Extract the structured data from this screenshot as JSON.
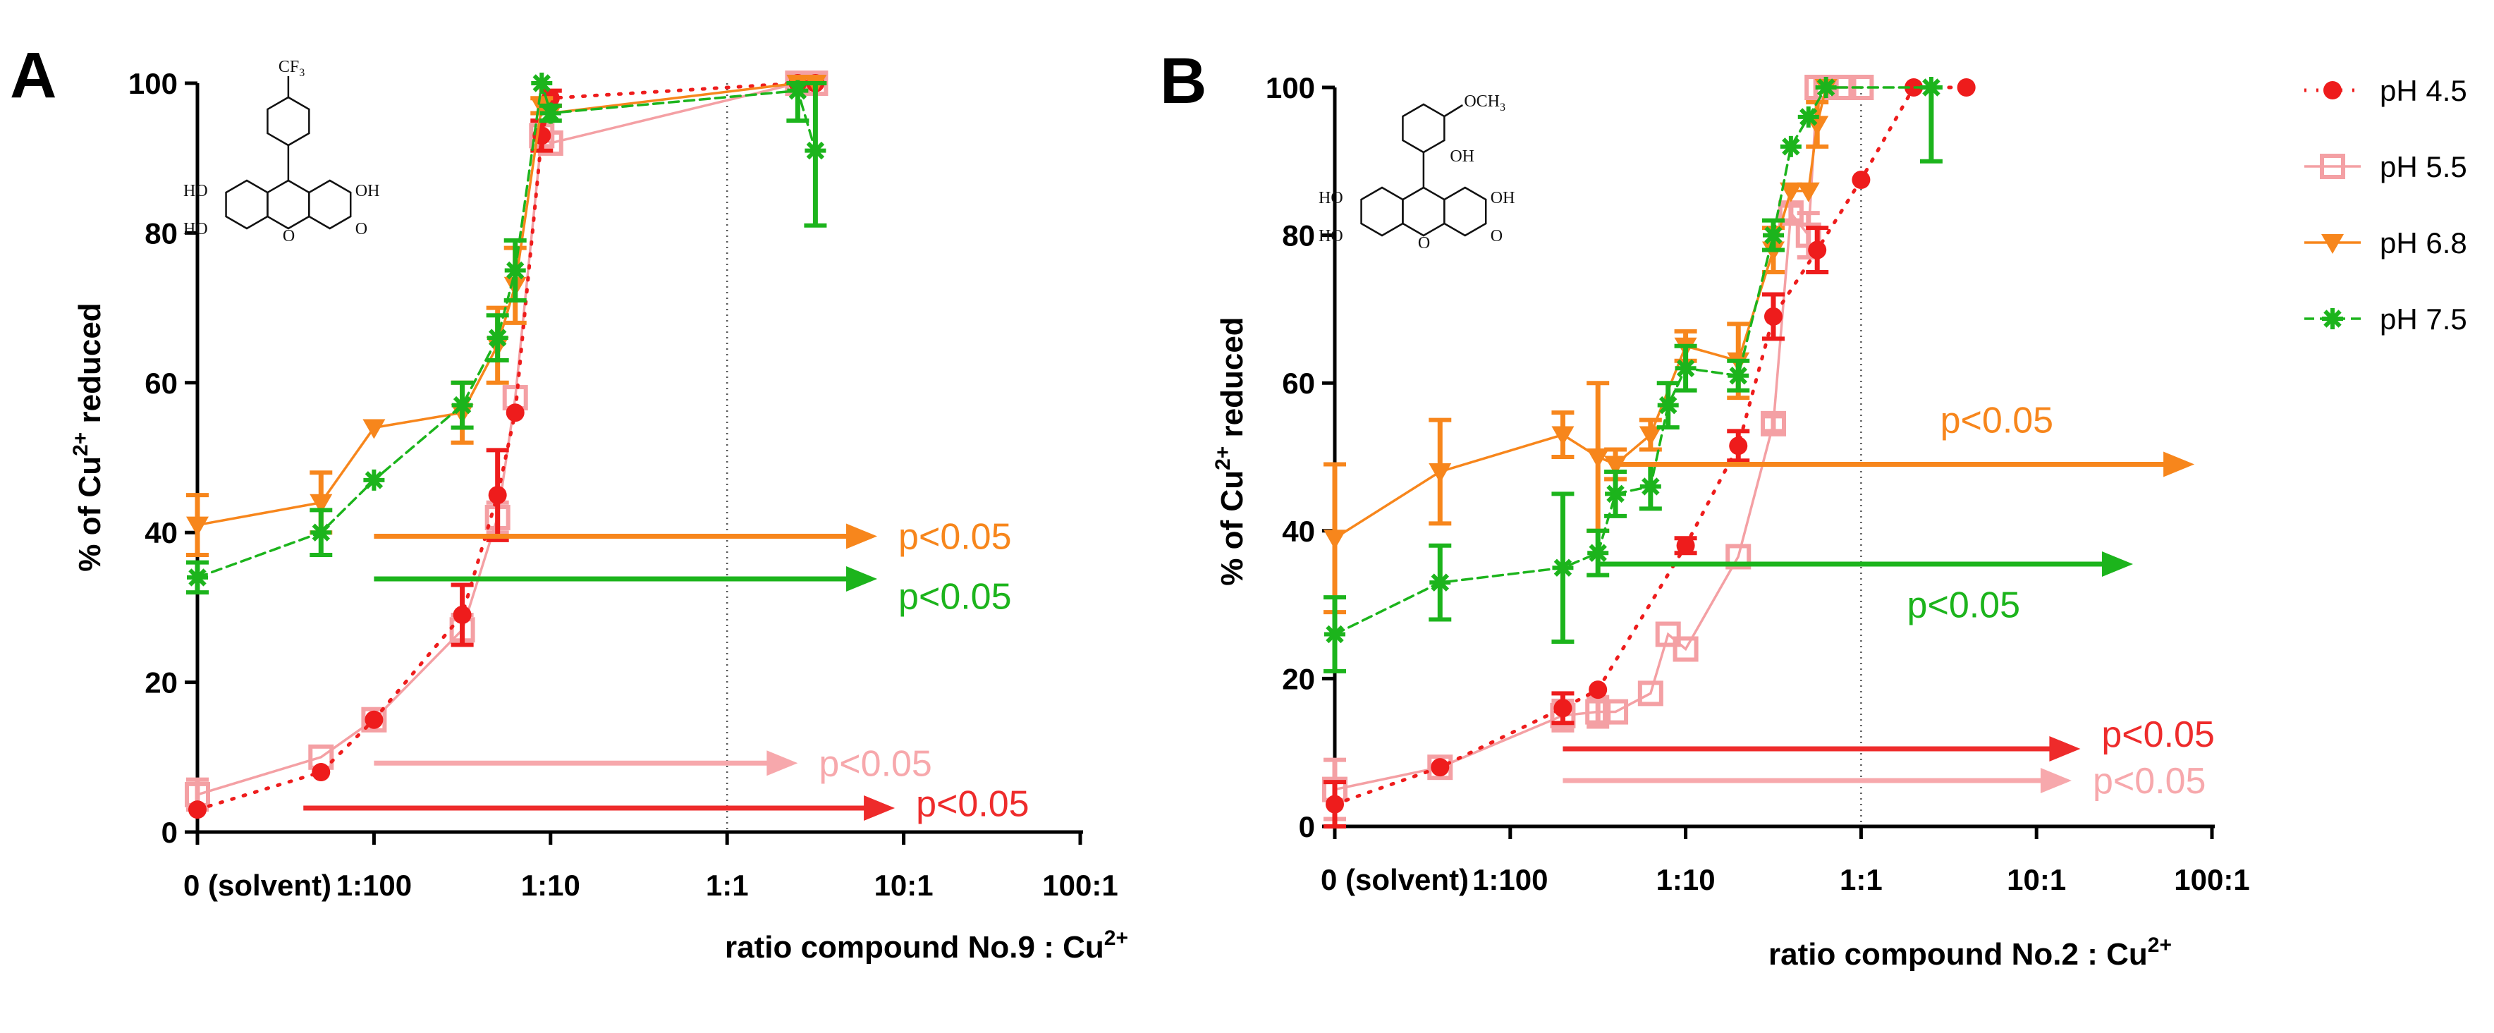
{
  "colors": {
    "ph45": "#ee1c1c",
    "ph55": "#f4a0a4",
    "ph68": "#f7861c",
    "ph75": "#1cb41c",
    "arrow_red": "#ee2b2b",
    "arrow_pink": "#f7a8ac"
  },
  "legend": [
    {
      "key": "ph45",
      "label": "pH 4.5",
      "marker": "circle",
      "dash": "dotted"
    },
    {
      "key": "ph55",
      "label": "pH 5.5",
      "marker": "square",
      "dash": "solid"
    },
    {
      "key": "ph68",
      "label": "pH 6.8",
      "marker": "triangle-down",
      "dash": "solid"
    },
    {
      "key": "ph75",
      "label": "pH 7.5",
      "marker": "asterisk",
      "dash": "dashed"
    }
  ],
  "chart_data": [
    {
      "type": "line",
      "panel_label": "A",
      "ylabel_pre": "% of Cu",
      "ylabel_sup": "2+",
      "ylabel_post": " reduced",
      "xlabel_pre": "ratio compound No.9 : Cu",
      "xlabel_sup": "2+",
      "x_scale": "log-ratio (decades from 1:1000), 0 = solvent",
      "xlim": [
        -3,
        2
      ],
      "ylim": [
        0,
        100
      ],
      "yticks": [
        0,
        20,
        40,
        60,
        80,
        100
      ],
      "ytick_labels": [
        "0",
        "20",
        "40",
        "60",
        "80",
        "100"
      ],
      "xticks": [
        -3,
        -2,
        -1,
        0,
        1,
        2
      ],
      "xtick_labels": [
        "0 (solvent)",
        "1:100",
        "1:10",
        "1:1",
        "10:1",
        "100:1"
      ],
      "reference_line_x": 0,
      "structure": {
        "top_label": "CF",
        "top_sub": "3",
        "left_labels": [
          "HO",
          "HO"
        ],
        "right_labels": [
          "OH",
          "O"
        ],
        "ring_o": "O"
      },
      "series": [
        {
          "key": "ph45",
          "name": "pH 4.5",
          "x": [
            -3,
            -2.3,
            -2,
            -1.5,
            -1.3,
            -1.2,
            -1.05,
            -1,
            0.4,
            0.5
          ],
          "y": [
            3,
            8,
            15,
            29,
            45,
            56,
            93,
            98,
            100,
            100
          ],
          "err": [
            0,
            0,
            0,
            4,
            6,
            0,
            2,
            1,
            0,
            0
          ]
        },
        {
          "key": "ph55",
          "name": "pH 5.5",
          "x": [
            -3,
            -2.3,
            -2,
            -1.5,
            -1.3,
            -1.2,
            -1.05,
            -1,
            0.4,
            0.5
          ],
          "y": [
            5,
            10,
            15,
            27,
            42,
            58,
            93,
            92,
            100,
            100
          ],
          "err": [
            2,
            0,
            0,
            2,
            2,
            0,
            0,
            0,
            0,
            0
          ]
        },
        {
          "key": "ph68",
          "name": "pH 6.8",
          "x": [
            -3,
            -2.3,
            -2,
            -1.5,
            -1.3,
            -1.2,
            -1.05,
            -1,
            0.4,
            0.5
          ],
          "y": [
            41,
            44,
            54,
            56,
            65,
            73,
            97,
            96,
            100,
            100
          ],
          "err": [
            4,
            4,
            0,
            4,
            5,
            5,
            1,
            0,
            0,
            0
          ]
        },
        {
          "key": "ph75",
          "name": "pH 7.5",
          "x": [
            -3,
            -2.3,
            -2,
            -1.5,
            -1.3,
            -1.2,
            -1.05,
            -1,
            0.4,
            0.5
          ],
          "y": [
            34,
            40,
            47,
            57,
            66,
            75,
            100,
            96,
            99,
            91
          ],
          "err": [
            2,
            3,
            0,
            3,
            3,
            4,
            0,
            1,
            4,
            10
          ]
        }
      ],
      "significance_arrows": [
        {
          "key": "ph68",
          "label": "p<0.05",
          "x_start": -2,
          "x_end": 0.85,
          "y": 39.5,
          "label_side": "right",
          "label_y": 39.5
        },
        {
          "key": "ph75",
          "label": "p<0.05",
          "x_start": -2,
          "x_end": 0.85,
          "y": 33.8,
          "label_side": "right",
          "label_y": 31.5
        },
        {
          "key": "ph55",
          "label": "p<0.05",
          "x_start": -2,
          "x_end": 0.4,
          "y": 9.2,
          "label_side": "right",
          "label_y": 9.2
        },
        {
          "key": "ph45",
          "label": "p<0.05",
          "x_start": -2.4,
          "x_end": 0.95,
          "y": 3.2,
          "label_side": "right",
          "label_y": 3.8
        }
      ]
    },
    {
      "type": "line",
      "panel_label": "B",
      "ylabel_pre": "% of Cu",
      "ylabel_sup": "2+",
      "ylabel_post": " reduced",
      "xlabel_pre": "ratio compound No.2 : Cu",
      "xlabel_sup": "2+",
      "x_scale": "log-ratio (decades from 1:1000), 0 = solvent",
      "xlim": [
        -3,
        2
      ],
      "ylim": [
        0,
        100
      ],
      "yticks": [
        0,
        20,
        40,
        60,
        80,
        100
      ],
      "ytick_labels": [
        "0",
        "20",
        "40",
        "60",
        "80",
        "100"
      ],
      "xticks": [
        -3,
        -2,
        -1,
        0,
        1,
        2
      ],
      "xtick_labels": [
        "0 (solvent)",
        "1:100",
        "1:10",
        "1:1",
        "10:1",
        "100:1"
      ],
      "reference_line_x": 0,
      "structure": {
        "top_label": "OCH",
        "top_sub": "3",
        "oh_label": "OH",
        "left_labels": [
          "HO",
          "HO"
        ],
        "right_labels": [
          "OH",
          "O"
        ],
        "ring_o": "O"
      },
      "series": [
        {
          "key": "ph45",
          "name": "pH 4.5",
          "x": [
            -3,
            -2.4,
            -1.7,
            -1.5,
            -1,
            -0.7,
            -0.5,
            -0.25,
            0,
            0.3,
            0.6
          ],
          "y": [
            3,
            8,
            16,
            18.5,
            38,
            51.5,
            69,
            78,
            87.5,
            100,
            100
          ],
          "err": [
            3,
            0,
            2,
            0,
            1,
            2,
            3,
            3,
            0,
            0,
            0
          ],
          "err_up": [
            3,
            0,
            2,
            0,
            1,
            2,
            3,
            3,
            0,
            0,
            0
          ]
        },
        {
          "key": "ph55",
          "name": "pH 5.5",
          "x": [
            -3,
            -2.4,
            -1.7,
            -1.5,
            -1.4,
            -1.2,
            -1.1,
            -1,
            -0.7,
            -0.5,
            -0.4,
            -0.3,
            -0.25,
            -0.2,
            -0.1,
            0
          ],
          "y": [
            5,
            8,
            15,
            15.5,
            15.5,
            18,
            26,
            24,
            36.5,
            54.5,
            83,
            80,
            100,
            100,
            100,
            100
          ],
          "err": [
            4,
            0,
            2,
            2,
            0,
            0,
            0,
            0,
            0,
            1,
            1,
            3,
            0,
            0,
            0,
            0
          ]
        },
        {
          "key": "ph68",
          "name": "pH 6.8",
          "x": [
            -3,
            -2.4,
            -1.7,
            -1.5,
            -1.4,
            -1.2,
            -1.0,
            -0.7,
            -0.5,
            -0.4,
            -0.3,
            -0.25,
            -0.2
          ],
          "y": [
            39,
            48,
            53,
            50,
            49,
            53,
            65,
            63,
            78,
            86,
            86,
            95,
            100
          ],
          "err": [
            10,
            7,
            3,
            10,
            2,
            2,
            2,
            5,
            3,
            0,
            0,
            3,
            0
          ]
        },
        {
          "key": "ph75",
          "name": "pH 7.5",
          "x": [
            -3,
            -2.4,
            -1.7,
            -1.5,
            -1.4,
            -1.2,
            -1.1,
            -1.0,
            -0.7,
            -0.5,
            -0.4,
            -0.3,
            -0.2,
            0.4
          ],
          "y": [
            26,
            33,
            35,
            37,
            45,
            46,
            57,
            62,
            61,
            80,
            92,
            96,
            100,
            100
          ],
          "err": [
            5,
            5,
            10,
            3,
            3,
            3,
            3,
            3,
            2,
            2,
            0,
            0,
            0,
            10
          ],
          "err_up": [
            5,
            5,
            10,
            3,
            3,
            3,
            3,
            3,
            2,
            2,
            0,
            0,
            0,
            0
          ]
        }
      ],
      "significance_arrows": [
        {
          "key": "ph68",
          "label": "p<0.05",
          "x_start": -1.4,
          "x_end": 1.9,
          "y": 49,
          "label_side": "above",
          "label_y": 55
        },
        {
          "key": "ph75",
          "label": "p<0.05",
          "x_start": -1.5,
          "x_end": 1.55,
          "y": 35.5,
          "label_side": "below",
          "label_y": 30
        },
        {
          "key": "ph45",
          "label": "p<0.05",
          "x_start": -1.7,
          "x_end": 1.25,
          "y": 10.5,
          "label_side": "right",
          "label_y": 12.5
        },
        {
          "key": "ph55",
          "label": "p<0.05",
          "x_start": -1.7,
          "x_end": 1.2,
          "y": 6.2,
          "label_side": "right",
          "label_y": 6.2
        }
      ]
    }
  ]
}
